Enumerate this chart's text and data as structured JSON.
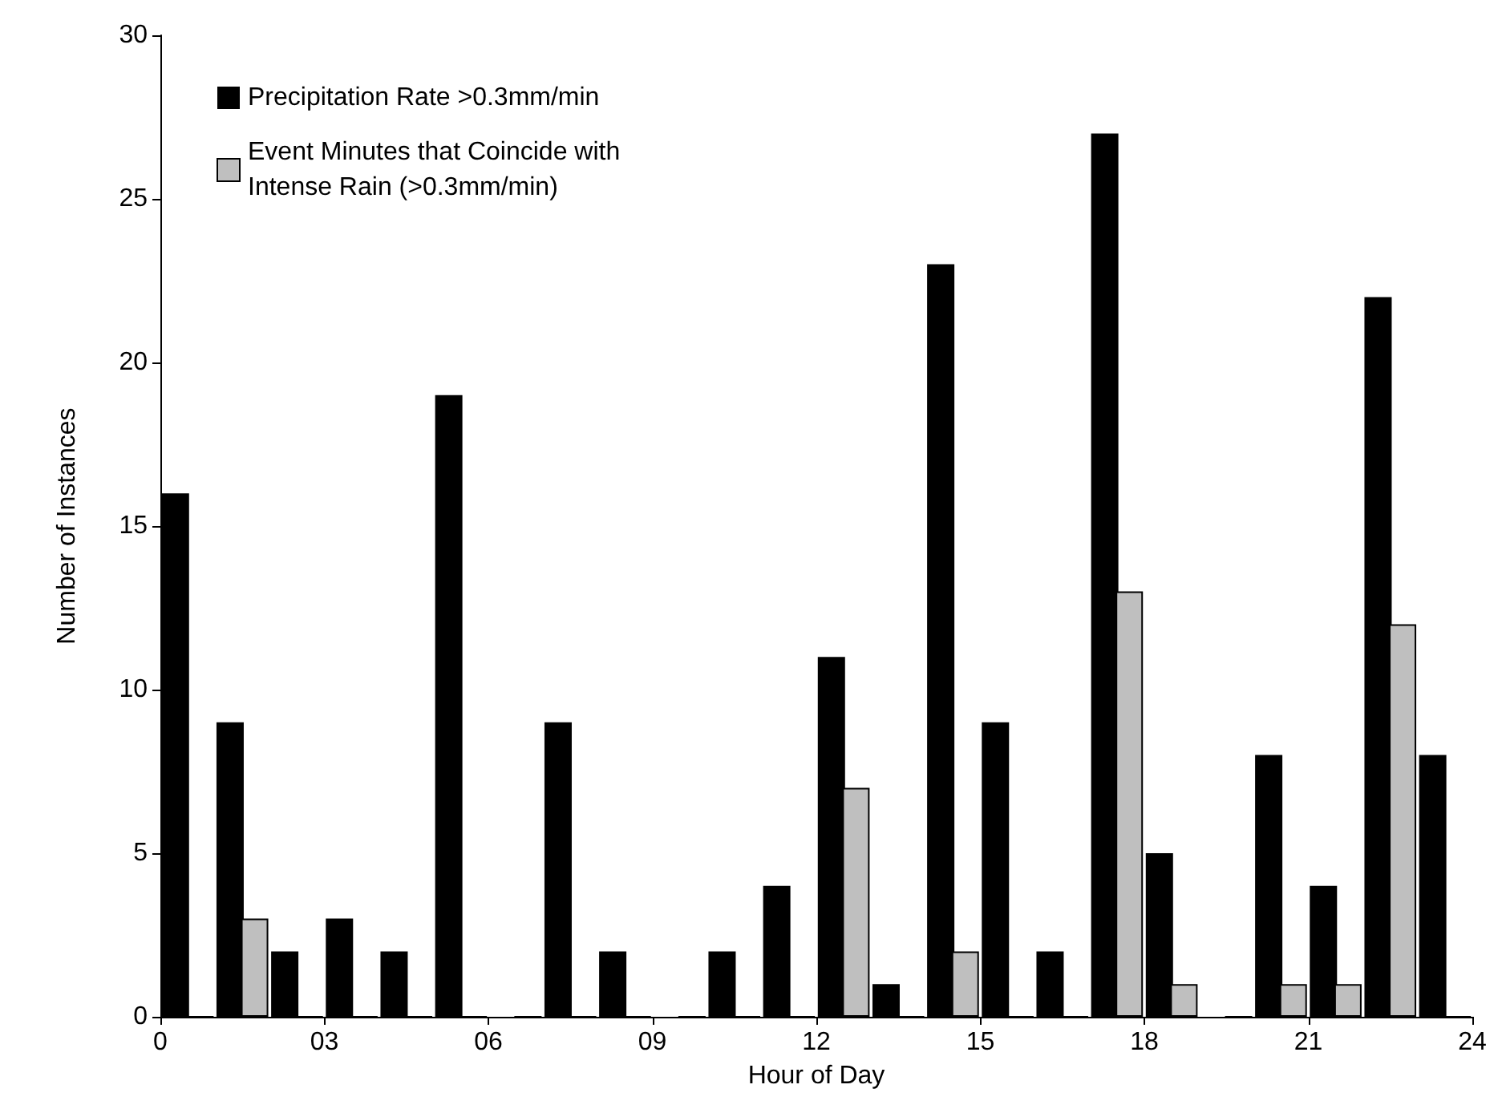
{
  "chart_data": {
    "type": "bar",
    "xlabel": "Hour of Day",
    "ylabel": "Number of Instances",
    "x": [
      0.5,
      1.5,
      2.5,
      3.5,
      4.5,
      5.5,
      6.5,
      7.5,
      8.5,
      9.5,
      10.5,
      11.5,
      12.5,
      13.5,
      14.5,
      15.5,
      16.5,
      17.5,
      18.5,
      19.5,
      20.5,
      21.5,
      22.5,
      23.5
    ],
    "series": [
      {
        "name": "Precipitation Rate >0.3mm/min",
        "color": "#000000",
        "values": [
          16,
          9,
          2,
          3,
          2,
          19,
          0,
          9,
          2,
          0,
          2,
          4,
          11,
          1,
          23,
          9,
          2,
          27,
          5,
          0,
          8,
          4,
          22,
          8
        ]
      },
      {
        "name": "Event Minutes that Coincide with Intense Rain (>0.3mm/min)",
        "color": "#bfbfbf",
        "values": [
          0,
          3,
          0,
          0,
          0,
          0,
          0,
          0,
          0,
          0,
          0,
          0,
          7,
          0,
          2,
          0,
          0,
          13,
          1,
          0,
          1,
          1,
          12,
          0
        ]
      }
    ],
    "xlim": [
      0,
      24
    ],
    "xticks": [
      0,
      {
        "value": 3,
        "label": "03"
      },
      {
        "value": 6,
        "label": "06"
      },
      {
        "value": 9,
        "label": "09"
      },
      12,
      15,
      18,
      21,
      24
    ],
    "ylim": [
      0,
      30
    ],
    "yticks": [
      0,
      5,
      10,
      15,
      20,
      25,
      30
    ],
    "grid": false,
    "legend": "top left"
  }
}
